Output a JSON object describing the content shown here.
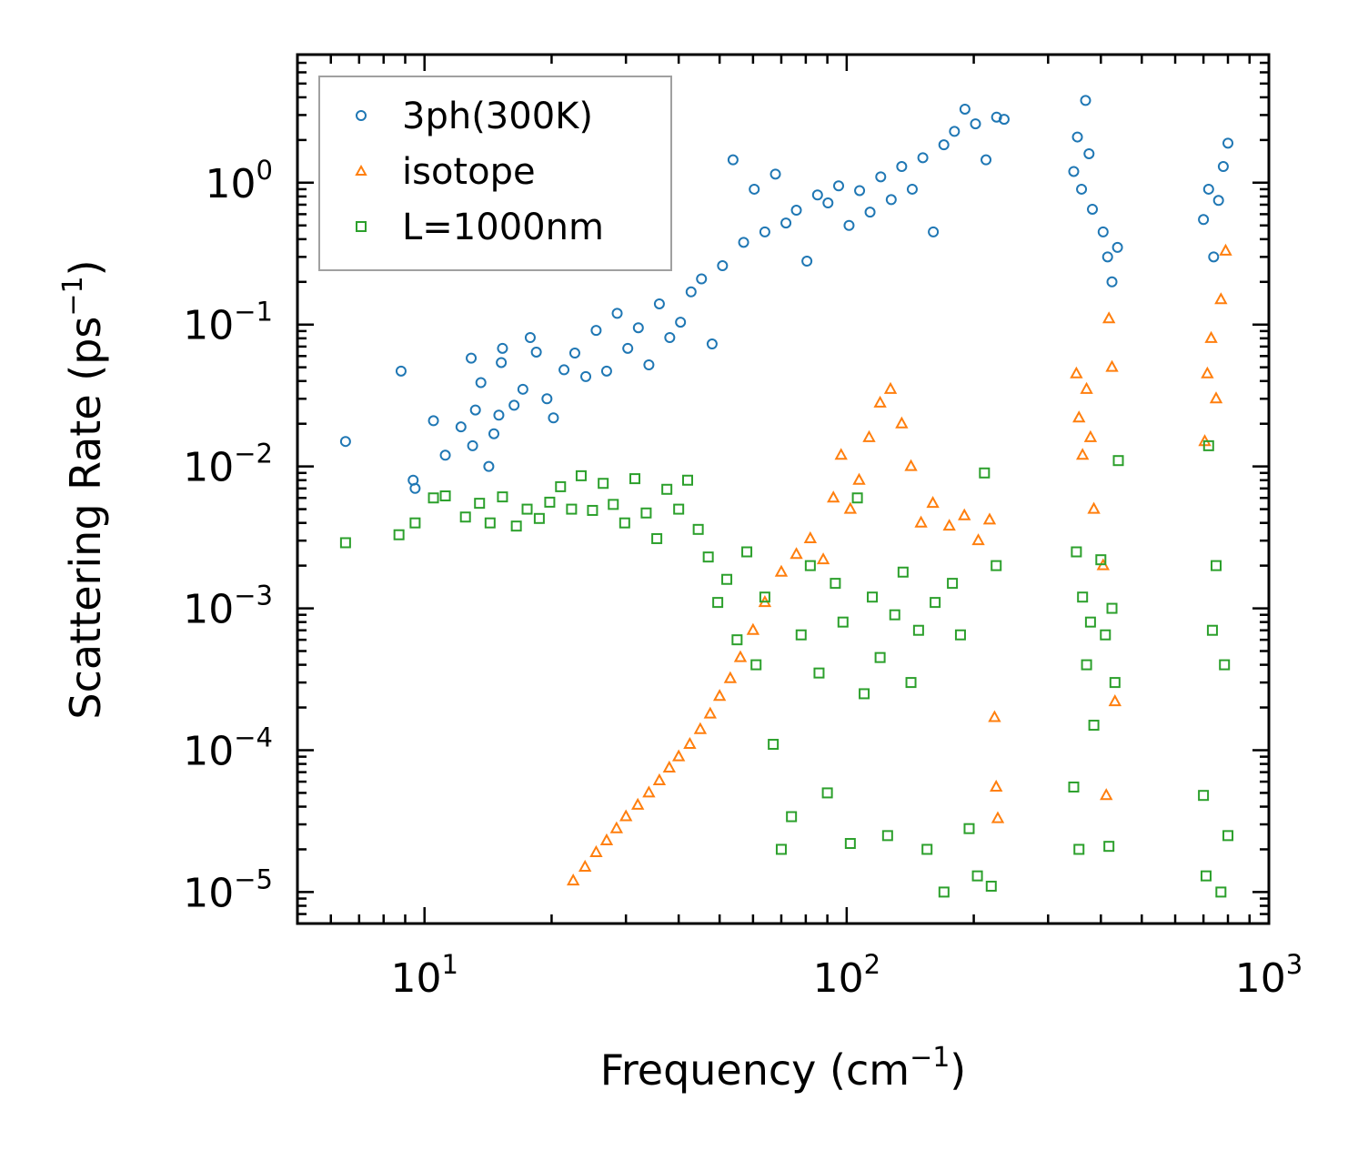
{
  "chart_data": {
    "type": "scatter",
    "title": "",
    "xlabel": {
      "text": "Frequency (cm",
      "sup": "−1",
      "close": ")"
    },
    "ylabel": {
      "text": "Scattering Rate (ps",
      "sup": "−1",
      "close": ")"
    },
    "xscale": "log",
    "yscale": "log",
    "xlim": [
      5,
      1000
    ],
    "ylim": [
      6e-06,
      8
    ],
    "xticks": [
      {
        "value": 10,
        "base": "10",
        "exp": "1"
      },
      {
        "value": 100,
        "base": "10",
        "exp": "2"
      },
      {
        "value": 1000,
        "base": "10",
        "exp": "3"
      }
    ],
    "yticks": [
      {
        "value": 1e-05,
        "base": "10",
        "exp": "−5"
      },
      {
        "value": 0.0001,
        "base": "10",
        "exp": "−4"
      },
      {
        "value": 0.001,
        "base": "10",
        "exp": "−3"
      },
      {
        "value": 0.01,
        "base": "10",
        "exp": "−2"
      },
      {
        "value": 0.1,
        "base": "10",
        "exp": "−1"
      },
      {
        "value": 1,
        "base": "10",
        "exp": "0"
      }
    ],
    "legend_position": "top-left",
    "series": [
      {
        "name": "3ph(300K)",
        "color": "#1f77b4",
        "marker": "circle",
        "points": [
          [
            6.5,
            0.015
          ],
          [
            8.8,
            0.047
          ],
          [
            9.4,
            0.008
          ],
          [
            9.5,
            0.007
          ],
          [
            10.5,
            0.021
          ],
          [
            11.2,
            0.012
          ],
          [
            12.2,
            0.019
          ],
          [
            12.9,
            0.058
          ],
          [
            13.0,
            0.014
          ],
          [
            13.2,
            0.025
          ],
          [
            13.6,
            0.039
          ],
          [
            14.2,
            0.01
          ],
          [
            14.6,
            0.017
          ],
          [
            15.0,
            0.023
          ],
          [
            15.2,
            0.054
          ],
          [
            15.3,
            0.068
          ],
          [
            16.3,
            0.027
          ],
          [
            17.1,
            0.035
          ],
          [
            17.8,
            0.081
          ],
          [
            18.4,
            0.064
          ],
          [
            19.5,
            0.03
          ],
          [
            20.2,
            0.022
          ],
          [
            21.4,
            0.048
          ],
          [
            22.7,
            0.063
          ],
          [
            24.1,
            0.043
          ],
          [
            25.5,
            0.091
          ],
          [
            27.0,
            0.047
          ],
          [
            28.6,
            0.12
          ],
          [
            30.3,
            0.068
          ],
          [
            32.1,
            0.095
          ],
          [
            34.0,
            0.052
          ],
          [
            36.0,
            0.14
          ],
          [
            38.1,
            0.081
          ],
          [
            40.4,
            0.104
          ],
          [
            42.8,
            0.17
          ],
          [
            45.3,
            0.21
          ],
          [
            48.0,
            0.073
          ],
          [
            50.8,
            0.26
          ],
          [
            53.8,
            1.45
          ],
          [
            57.0,
            0.38
          ],
          [
            60.4,
            0.9
          ],
          [
            64.0,
            0.45
          ],
          [
            67.8,
            1.15
          ],
          [
            71.8,
            0.52
          ],
          [
            76.0,
            0.64
          ],
          [
            80.5,
            0.28
          ],
          [
            85.3,
            0.82
          ],
          [
            90.3,
            0.72
          ],
          [
            95.7,
            0.95
          ],
          [
            101.3,
            0.5
          ],
          [
            107.3,
            0.88
          ],
          [
            113.6,
            0.62
          ],
          [
            120.4,
            1.1
          ],
          [
            127.5,
            0.76
          ],
          [
            135.0,
            1.3
          ],
          [
            143.0,
            0.9
          ],
          [
            151.5,
            1.5
          ],
          [
            160.4,
            0.45
          ],
          [
            169.9,
            1.85
          ],
          [
            180.0,
            2.3
          ],
          [
            190.6,
            3.3
          ],
          [
            201.9,
            2.6
          ],
          [
            213.8,
            1.45
          ],
          [
            226.5,
            2.9
          ],
          [
            236.0,
            2.8
          ],
          [
            345,
            1.2
          ],
          [
            352,
            2.1
          ],
          [
            360,
            0.9
          ],
          [
            368,
            3.8
          ],
          [
            375,
            1.6
          ],
          [
            382,
            0.65
          ],
          [
            405,
            0.45
          ],
          [
            415,
            0.3
          ],
          [
            425,
            0.2
          ],
          [
            438,
            0.35
          ],
          [
            700,
            0.55
          ],
          [
            720,
            0.9
          ],
          [
            740,
            0.3
          ],
          [
            760,
            0.75
          ],
          [
            780,
            1.3
          ],
          [
            800,
            1.9
          ]
        ]
      },
      {
        "name": "isotope",
        "color": "#ff7f0e",
        "marker": "triangle",
        "points": [
          [
            22.5,
            1.2e-05
          ],
          [
            24.0,
            1.5e-05
          ],
          [
            25.5,
            1.9e-05
          ],
          [
            27.0,
            2.3e-05
          ],
          [
            28.5,
            2.8e-05
          ],
          [
            30.0,
            3.4e-05
          ],
          [
            32.0,
            4.1e-05
          ],
          [
            34.0,
            5e-05
          ],
          [
            36.0,
            6.1e-05
          ],
          [
            38.0,
            7.5e-05
          ],
          [
            40.0,
            9e-05
          ],
          [
            42.5,
            0.00011
          ],
          [
            45.0,
            0.00014
          ],
          [
            47.5,
            0.00018
          ],
          [
            50.0,
            0.00024
          ],
          [
            53.0,
            0.00032
          ],
          [
            56.0,
            0.00045
          ],
          [
            60.0,
            0.0007
          ],
          [
            64.0,
            0.0011
          ],
          [
            70.0,
            0.0018
          ],
          [
            76.0,
            0.0024
          ],
          [
            82.0,
            0.0031
          ],
          [
            88.0,
            0.0022
          ],
          [
            93.0,
            0.006
          ],
          [
            97.0,
            0.012
          ],
          [
            102.0,
            0.005
          ],
          [
            107.0,
            0.008
          ],
          [
            113.0,
            0.016
          ],
          [
            120.0,
            0.028
          ],
          [
            127.0,
            0.035
          ],
          [
            135.0,
            0.02
          ],
          [
            142.0,
            0.01
          ],
          [
            150.0,
            0.004
          ],
          [
            160.0,
            0.0055
          ],
          [
            175.0,
            0.0038
          ],
          [
            190.0,
            0.0045
          ],
          [
            205.0,
            0.003
          ],
          [
            218.0,
            0.0042
          ],
          [
            224.0,
            0.00017
          ],
          [
            226.0,
            5.5e-05
          ],
          [
            228.0,
            3.3e-05
          ],
          [
            350,
            0.045
          ],
          [
            355,
            0.022
          ],
          [
            362,
            0.012
          ],
          [
            370,
            0.035
          ],
          [
            378,
            0.016
          ],
          [
            385,
            0.005
          ],
          [
            405,
            0.002
          ],
          [
            412,
            4.8e-05
          ],
          [
            418,
            0.11
          ],
          [
            425,
            0.05
          ],
          [
            432,
            0.00022
          ],
          [
            705,
            0.015
          ],
          [
            715,
            0.045
          ],
          [
            730,
            0.08
          ],
          [
            750,
            0.03
          ],
          [
            770,
            0.15
          ],
          [
            790,
            0.33
          ]
        ]
      },
      {
        "name": "L=1000nm",
        "color": "#2ca02c",
        "marker": "square",
        "points": [
          [
            6.5,
            0.0029
          ],
          [
            8.7,
            0.0033
          ],
          [
            9.5,
            0.004
          ],
          [
            10.5,
            0.006
          ],
          [
            11.2,
            0.0062
          ],
          [
            12.5,
            0.0044
          ],
          [
            13.5,
            0.0055
          ],
          [
            14.3,
            0.004
          ],
          [
            15.3,
            0.0061
          ],
          [
            16.5,
            0.0038
          ],
          [
            17.5,
            0.005
          ],
          [
            18.7,
            0.0043
          ],
          [
            19.8,
            0.0056
          ],
          [
            21.0,
            0.0072
          ],
          [
            22.3,
            0.005
          ],
          [
            23.5,
            0.0086
          ],
          [
            25.0,
            0.0049
          ],
          [
            26.5,
            0.0076
          ],
          [
            28.0,
            0.0054
          ],
          [
            29.8,
            0.004
          ],
          [
            31.5,
            0.0082
          ],
          [
            33.5,
            0.0047
          ],
          [
            35.5,
            0.0031
          ],
          [
            37.5,
            0.0069
          ],
          [
            40.0,
            0.005
          ],
          [
            42.0,
            0.008
          ],
          [
            44.5,
            0.0036
          ],
          [
            47.0,
            0.0023
          ],
          [
            49.5,
            0.0011
          ],
          [
            52.0,
            0.0016
          ],
          [
            55.0,
            0.0006
          ],
          [
            58.0,
            0.0025
          ],
          [
            61.0,
            0.0004
          ],
          [
            64.0,
            0.0012
          ],
          [
            67.0,
            0.00011
          ],
          [
            70.0,
            2e-05
          ],
          [
            74.0,
            3.4e-05
          ],
          [
            78.0,
            0.00065
          ],
          [
            82.0,
            0.002
          ],
          [
            86.0,
            0.00035
          ],
          [
            90.0,
            5e-05
          ],
          [
            94.0,
            0.0015
          ],
          [
            98.0,
            0.0008
          ],
          [
            102.0,
            2.2e-05
          ],
          [
            106.0,
            0.006
          ],
          [
            110.0,
            0.00025
          ],
          [
            115.0,
            0.0012
          ],
          [
            120.0,
            0.00045
          ],
          [
            125.0,
            2.5e-05
          ],
          [
            130.0,
            0.0009
          ],
          [
            136.0,
            0.0018
          ],
          [
            142.0,
            0.0003
          ],
          [
            148.0,
            0.0007
          ],
          [
            155.0,
            2e-05
          ],
          [
            162.0,
            0.0011
          ],
          [
            170.0,
            1e-05
          ],
          [
            178.0,
            0.0015
          ],
          [
            186.0,
            0.00065
          ],
          [
            195.0,
            2.8e-05
          ],
          [
            204.0,
            1.3e-05
          ],
          [
            212.0,
            0.009
          ],
          [
            220.0,
            1.1e-05
          ],
          [
            226.0,
            0.002
          ],
          [
            345,
            5.5e-05
          ],
          [
            350,
            0.0025
          ],
          [
            355,
            2e-05
          ],
          [
            362,
            0.0012
          ],
          [
            370,
            0.0004
          ],
          [
            378,
            0.0008
          ],
          [
            385,
            0.00015
          ],
          [
            400,
            0.0022
          ],
          [
            410,
            0.00065
          ],
          [
            418,
            2.1e-05
          ],
          [
            425,
            0.001
          ],
          [
            432,
            0.0003
          ],
          [
            440,
            0.011
          ],
          [
            700,
            4.8e-05
          ],
          [
            710,
            1.3e-05
          ],
          [
            720,
            0.014
          ],
          [
            735,
            0.0007
          ],
          [
            750,
            0.002
          ],
          [
            770,
            1e-05
          ],
          [
            785,
            0.0004
          ],
          [
            800,
            2.5e-05
          ]
        ]
      }
    ]
  }
}
